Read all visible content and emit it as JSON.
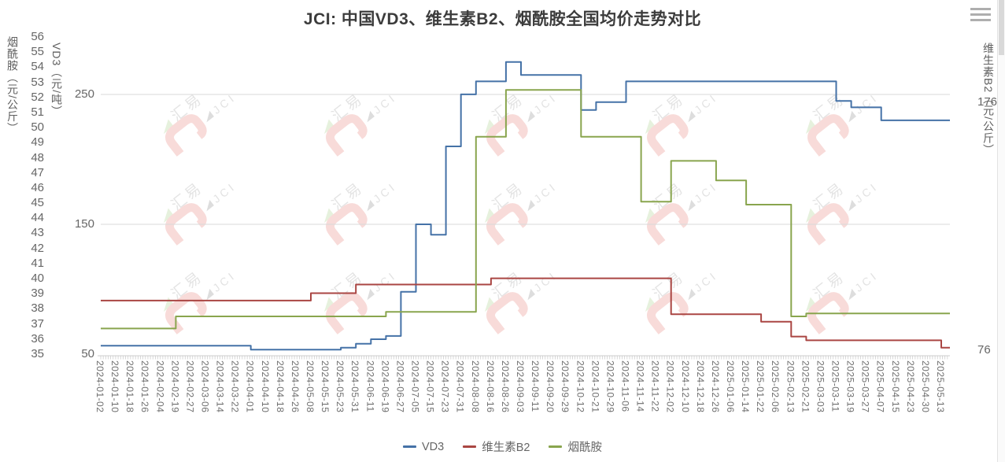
{
  "header": {
    "title": "JCI: 中国VD3、维生素B2、烟酰胺全国均价走势对比",
    "menu_icon": "hamburger-menu"
  },
  "axes": {
    "left_outer": {
      "name": "烟酰胺（元/公斤）",
      "ticks": [
        56,
        55,
        54,
        53,
        52,
        51,
        50,
        49,
        48,
        47,
        46,
        45,
        44,
        43,
        42,
        41,
        40,
        39,
        38,
        37,
        36,
        35
      ]
    },
    "left_inner": {
      "name": "VD3（元/吨）",
      "ticks": [
        250,
        150,
        50
      ]
    },
    "right": {
      "name": "维生素B2（元/公斤）",
      "ticks": [
        176,
        76
      ]
    }
  },
  "watermark": {
    "text_primary": "汇易",
    "text_secondary": "JCI"
  },
  "colors": {
    "grid": "#d9d9d9",
    "axis_text": "#666666",
    "title_text": "#3c3c3c"
  },
  "chart_data": {
    "type": "line",
    "step": true,
    "grid": "horizontal-only",
    "legend_position": "bottom",
    "title": "JCI: 中国VD3、维生素B2、烟酰胺全国均价走势对比",
    "categories": [
      "2024-01-02",
      "2024-01-10",
      "2024-01-18",
      "2024-01-26",
      "2024-02-04",
      "2024-02-19",
      "2024-02-27",
      "2024-03-06",
      "2024-03-14",
      "2024-03-22",
      "2024-04-01",
      "2024-04-10",
      "2024-04-18",
      "2024-04-26",
      "2024-05-08",
      "2024-05-15",
      "2024-05-23",
      "2024-05-31",
      "2024-06-11",
      "2024-06-19",
      "2024-06-27",
      "2024-07-05",
      "2024-07-15",
      "2024-07-23",
      "2024-07-31",
      "2024-08-08",
      "2024-08-16",
      "2024-08-26",
      "2024-09-03",
      "2024-09-11",
      "2024-09-20",
      "2024-09-29",
      "2024-10-12",
      "2024-10-21",
      "2024-10-29",
      "2024-11-06",
      "2024-11-14",
      "2024-11-22",
      "2024-12-02",
      "2024-12-10",
      "2024-12-18",
      "2024-12-26",
      "2025-01-06",
      "2025-01-14",
      "2025-01-22",
      "2025-02-06",
      "2025-02-13",
      "2025-02-21",
      "2025-03-03",
      "2025-03-11",
      "2025-03-19",
      "2025-03-27",
      "2025-04-07",
      "2025-04-15",
      "2025-04-23",
      "2025-04-30",
      "2025-05-13"
    ],
    "axes_y": {
      "vd3": {
        "label": "VD3（元/吨）",
        "min": 50,
        "max": 294.2,
        "ticks": [
          250,
          150,
          50
        ],
        "gridline_ticks": [
          250,
          150
        ]
      },
      "b2": {
        "label": "维生素B2（元/公斤）",
        "min": 74.4,
        "max": 202.3,
        "ticks": [
          176,
          76
        ],
        "gridline_ticks": []
      },
      "nia": {
        "label": "烟酰胺（元/公斤）",
        "min": 35,
        "max": 56,
        "ticks": [
          56,
          55,
          54,
          53,
          52,
          51,
          50,
          49,
          48,
          47,
          46,
          45,
          44,
          43,
          42,
          41,
          40,
          39,
          38,
          37,
          36,
          35
        ],
        "gridline_ticks": []
      }
    },
    "series": [
      {
        "name": "VD3",
        "color": "#4572A7",
        "axis": "vd3",
        "values": [
          56.5,
          56.5,
          56.5,
          56.5,
          56.5,
          56.5,
          56.5,
          56.5,
          56.5,
          56.5,
          53.5,
          53.5,
          53.5,
          53.5,
          53.5,
          53.5,
          55,
          58,
          61.5,
          64,
          98,
          150,
          142,
          210,
          250,
          260,
          260,
          275,
          265,
          265,
          265,
          265,
          238,
          244,
          244,
          260,
          260,
          260,
          260,
          260,
          260,
          260,
          260,
          260,
          260,
          260,
          260,
          260,
          260,
          245,
          240,
          240,
          230,
          230,
          230,
          230,
          230
        ]
      },
      {
        "name": "维生素B2",
        "color": "#AA4643",
        "axis": "b2",
        "values": [
          96,
          96,
          96,
          96,
          96,
          96,
          96,
          96,
          96,
          96,
          96,
          96,
          96,
          96,
          99,
          99,
          99,
          102.5,
          102.5,
          102.5,
          102.5,
          102.5,
          102.5,
          102.5,
          102.5,
          102.5,
          105,
          105,
          105,
          105,
          105,
          105,
          105,
          105,
          105,
          105,
          105,
          105,
          90.5,
          90.5,
          90.5,
          90.5,
          90.5,
          90.5,
          87.5,
          87.5,
          81.5,
          80,
          80,
          80,
          80,
          80,
          80,
          80,
          80,
          80,
          77
        ]
      },
      {
        "name": "烟酰胺",
        "color": "#89A54E",
        "axis": "nia",
        "values": [
          36.7,
          36.7,
          36.7,
          36.7,
          36.7,
          37.5,
          37.5,
          37.5,
          37.5,
          37.5,
          37.5,
          37.5,
          37.5,
          37.5,
          37.5,
          37.5,
          37.5,
          37.5,
          37.5,
          37.8,
          37.8,
          37.8,
          37.8,
          37.8,
          37.8,
          49.4,
          49.4,
          52.5,
          52.5,
          52.5,
          52.5,
          52.5,
          49.4,
          49.4,
          49.4,
          49.4,
          45.1,
          45.1,
          47.8,
          47.8,
          47.8,
          46.5,
          46.5,
          44.9,
          44.9,
          44.9,
          37.5,
          37.7,
          37.7,
          37.7,
          37.7,
          37.7,
          37.7,
          37.7,
          37.7,
          37.7,
          37.7
        ]
      }
    ]
  }
}
